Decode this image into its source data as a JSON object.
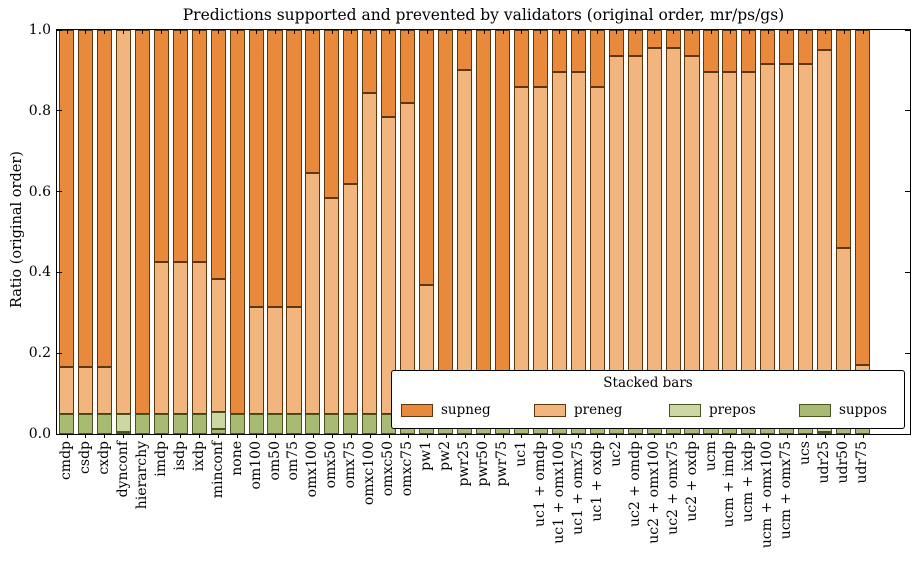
{
  "title": "Predictions supported and prevented by validators (original order, mr/ps/gs)",
  "y_axis": {
    "label": "Ratio (original order)",
    "ticks": [
      "0.0",
      "0.2",
      "0.4",
      "0.6",
      "0.8",
      "1.0"
    ],
    "range": [
      0.0,
      1.0
    ]
  },
  "legend": {
    "title": "Stacked bars",
    "entries": [
      {
        "label": "supneg",
        "color": "#e9893c",
        "edge": "#5f370e"
      },
      {
        "label": "preneg",
        "color": "#f3b57e",
        "edge": "#5f370e"
      },
      {
        "label": "prepos",
        "color": "#ccd7a3",
        "edge": "#4a5420"
      },
      {
        "label": "suppos",
        "color": "#a7bb72",
        "edge": "#4a5420"
      }
    ]
  },
  "chart_data": {
    "type": "bar",
    "stacked": true,
    "grid": false,
    "legend_position": "lower right",
    "ylim": [
      0,
      1
    ],
    "categories": [
      "cmdp",
      "csdp",
      "cxdp",
      "dynconf",
      "hierarchy",
      "imdp",
      "isdp",
      "ixdp",
      "minconf",
      "none",
      "om100",
      "om50",
      "om75",
      "omx100",
      "omx50",
      "omx75",
      "omxc100",
      "omxc50",
      "omxc75",
      "pw1",
      "pw2",
      "pwr25",
      "pwr50",
      "pwr75",
      "uc1",
      "uc1 + omdp",
      "uc1 + omx100",
      "uc1 + omx75",
      "uc1 + oxdp",
      "uc2",
      "uc2 + omdp",
      "uc2 + omx100",
      "uc2 + omx75",
      "uc2 + oxdp",
      "ucm",
      "ucm + imdp",
      "ucm + ixdp",
      "ucm + omx100",
      "ucm + omx75",
      "ucs",
      "udr25",
      "udr50",
      "udr75"
    ],
    "series": [
      {
        "name": "suppos",
        "color": "#a7bb72",
        "edge": "#4a5420",
        "values": [
          0.05,
          0.05,
          0.05,
          0.005,
          0.05,
          0.05,
          0.05,
          0.05,
          0.013,
          0.05,
          0.05,
          0.05,
          0.05,
          0.05,
          0.05,
          0.05,
          0.05,
          0.05,
          0.05,
          0.05,
          0.05,
          0.05,
          0.05,
          0.05,
          0.05,
          0.05,
          0.05,
          0.05,
          0.05,
          0.05,
          0.05,
          0.05,
          0.05,
          0.05,
          0.05,
          0.05,
          0.05,
          0.05,
          0.05,
          0.05,
          0.005,
          0.05,
          0.05
        ]
      },
      {
        "name": "prepos",
        "color": "#ccd7a3",
        "edge": "#4a5420",
        "values": [
          0,
          0,
          0,
          0.045,
          0,
          0,
          0,
          0,
          0.042,
          0,
          0,
          0,
          0,
          0,
          0,
          0,
          0,
          0,
          0,
          0,
          0,
          0,
          0,
          0,
          0,
          0,
          0,
          0,
          0,
          0,
          0,
          0,
          0,
          0,
          0,
          0,
          0,
          0,
          0,
          0,
          0.045,
          0,
          0
        ]
      },
      {
        "name": "preneg",
        "color": "#f3b57e",
        "edge": "#5f370e",
        "values": [
          0.115,
          0.115,
          0.115,
          0.95,
          0,
          0.375,
          0.375,
          0.375,
          0.33,
          0,
          0.265,
          0.265,
          0.265,
          0.595,
          0.535,
          0.57,
          0.795,
          0.735,
          0.77,
          0.32,
          0,
          0.85,
          0,
          0,
          0.81,
          0.81,
          0.845,
          0.845,
          0.81,
          0.885,
          0.885,
          0.905,
          0.905,
          0.885,
          0.845,
          0.845,
          0.845,
          0.865,
          0.865,
          0.865,
          0.9,
          0.41,
          0.12
        ]
      },
      {
        "name": "supneg",
        "color": "#e9893c",
        "edge": "#5f370e",
        "values": [
          0.835,
          0.835,
          0.835,
          0,
          0.95,
          0.575,
          0.575,
          0.575,
          0.615,
          0.95,
          0.685,
          0.685,
          0.685,
          0.355,
          0.415,
          0.38,
          0.155,
          0.215,
          0.18,
          0.63,
          0.95,
          0.1,
          0.95,
          0.95,
          0.14,
          0.14,
          0.105,
          0.105,
          0.14,
          0.065,
          0.065,
          0.045,
          0.045,
          0.065,
          0.105,
          0.105,
          0.105,
          0.085,
          0.085,
          0.085,
          0.05,
          0.54,
          0.83
        ]
      }
    ]
  }
}
